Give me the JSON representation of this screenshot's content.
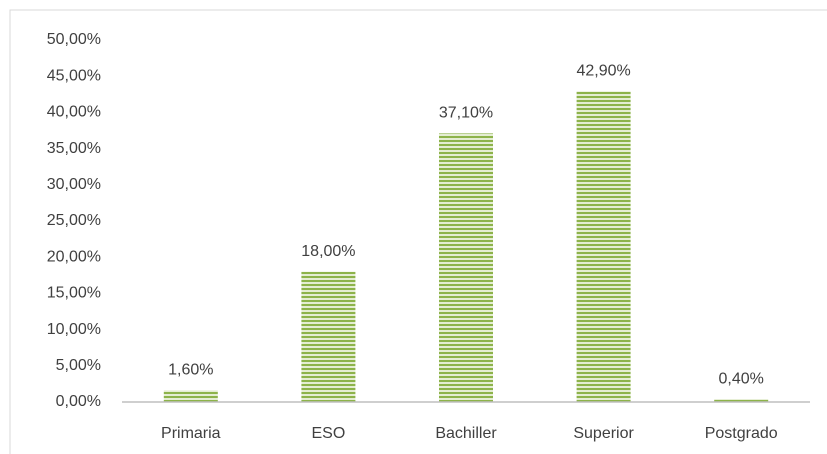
{
  "chart_data": {
    "type": "bar",
    "categories": [
      "Primaria",
      "ESO",
      "Bachiller",
      "Superior",
      "Postgrado"
    ],
    "values": [
      1.6,
      18,
      37.1,
      42.9,
      0.4
    ],
    "value_labels": [
      "1,60%",
      "18,00%",
      "37,10%",
      "42,90%",
      "0,40%"
    ],
    "color": "#9bbb59",
    "ylim": [
      0,
      50
    ],
    "yticks": [
      {
        "value": 0,
        "label": "0,00%"
      },
      {
        "value": 5,
        "label": "5,00%"
      },
      {
        "value": 10,
        "label": "10,00%"
      },
      {
        "value": 15,
        "label": "15,00%"
      },
      {
        "value": 20,
        "label": "20,00%"
      },
      {
        "value": 25,
        "label": "25,00%"
      },
      {
        "value": 30,
        "label": "30,00%"
      },
      {
        "value": 35,
        "label": "35,00%"
      },
      {
        "value": 40,
        "label": "40,00%"
      },
      {
        "value": 45,
        "label": "45,00%"
      },
      {
        "value": 50,
        "label": "50,00%"
      }
    ],
    "grid": false
  }
}
